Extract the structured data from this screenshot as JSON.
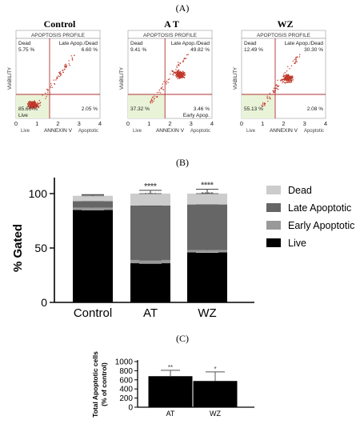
{
  "labels": {
    "panel_a": "(A)",
    "panel_b": "(B)",
    "panel_c": "(C)"
  },
  "colors": {
    "live": "#000000",
    "early": "#999999",
    "late": "#666666",
    "dead": "#cccccc",
    "scatter_dot": "#c0392b",
    "quad_line": "#b03030"
  },
  "scatter_plots": [
    {
      "heading": "Control",
      "profile_title": "APOPTOSIS PROFILE",
      "q_dead_label": "Dead",
      "q_dead": "5.75 %",
      "q_late_label": "Late Apop./Dead",
      "q_late": "6.60 %",
      "q_live_label": "Live",
      "q_live": "85.60 %",
      "q_early_label": "",
      "q_early": "2.05 %",
      "ylabel": "VIABILITY",
      "xlabel": "ANNEXIN V",
      "x_left_label": "Live",
      "x_right_label": "Apoptotic",
      "xticks": [
        "0",
        "1",
        "2",
        "3",
        "4"
      ]
    },
    {
      "heading": "A T",
      "profile_title": "APOPTOSIS PROFILE",
      "q_dead_label": "Dead",
      "q_dead": "9.41 %",
      "q_late_label": "Late Apop./Dead",
      "q_late": "49.82 %",
      "q_live_label": "",
      "q_live": "37.32 %",
      "q_early_label": "Early Apop.",
      "q_early": "3.46 %",
      "ylabel": "VIABILITY",
      "xlabel": "ANNEXIN V",
      "x_left_label": "Live",
      "x_right_label": "Apoptotic",
      "xticks": [
        "0",
        "1",
        "2",
        "3",
        "4"
      ]
    },
    {
      "heading": "WZ",
      "profile_title": "APOPTOSIS PROFILE",
      "q_dead_label": "Dead",
      "q_dead": "12.49 %",
      "q_late_label": "Late Apop./Dead",
      "q_late": "30.30 %",
      "q_live_label": "",
      "q_live": "55.13 %",
      "q_early_label": "",
      "q_early": "2.08 %",
      "ylabel": "VIABILITY",
      "xlabel": "ANNEXIN V",
      "x_left_label": "Live",
      "x_right_label": "Apoptotic",
      "xticks": [
        "0",
        "1",
        "2",
        "3",
        "4"
      ]
    }
  ],
  "chart_data": [
    {
      "type": "bar",
      "stacked": true,
      "title": "",
      "xlabel": "",
      "ylabel": "% Gated",
      "ylim": [
        0,
        100
      ],
      "yticks": [
        0,
        50,
        100
      ],
      "categories": [
        "Control",
        "AT",
        "WZ"
      ],
      "legend_position": "right",
      "series": [
        {
          "name": "Live",
          "values": [
            85,
            36,
            46
          ],
          "errors": [
            4,
            3,
            9
          ],
          "annotations": [
            "",
            "****",
            "****"
          ]
        },
        {
          "name": "Early Apoptotic",
          "values": [
            2,
            3,
            2
          ],
          "errors": [
            0,
            1,
            0
          ],
          "annotations": [
            "",
            "****",
            ""
          ]
        },
        {
          "name": "Late Apoptotic",
          "values": [
            6,
            50,
            42
          ],
          "errors": [
            2,
            5,
            5
          ],
          "annotations": [
            "",
            "****",
            "****"
          ]
        },
        {
          "name": "Dead",
          "values": [
            5,
            11,
            10
          ],
          "errors": [
            1,
            3,
            4
          ],
          "annotations": [
            "",
            "****",
            "****"
          ]
        }
      ],
      "legend_order": [
        "Dead",
        "Late Apoptotic",
        "Early Apoptotic",
        "Live"
      ]
    },
    {
      "type": "bar",
      "title": "",
      "xlabel": "",
      "ylabel": "Total Apoptotic cells\n(% of control)",
      "ylabel_lines": [
        "Total Apoptotic cells",
        "(% of control)"
      ],
      "ylim": [
        0,
        1000
      ],
      "yticks": [
        0,
        200,
        400,
        600,
        800,
        1000
      ],
      "categories": [
        "AT",
        "WZ"
      ],
      "values": [
        680,
        575
      ],
      "errors": [
        130,
        200
      ],
      "annotations": [
        "**",
        "*"
      ]
    }
  ]
}
